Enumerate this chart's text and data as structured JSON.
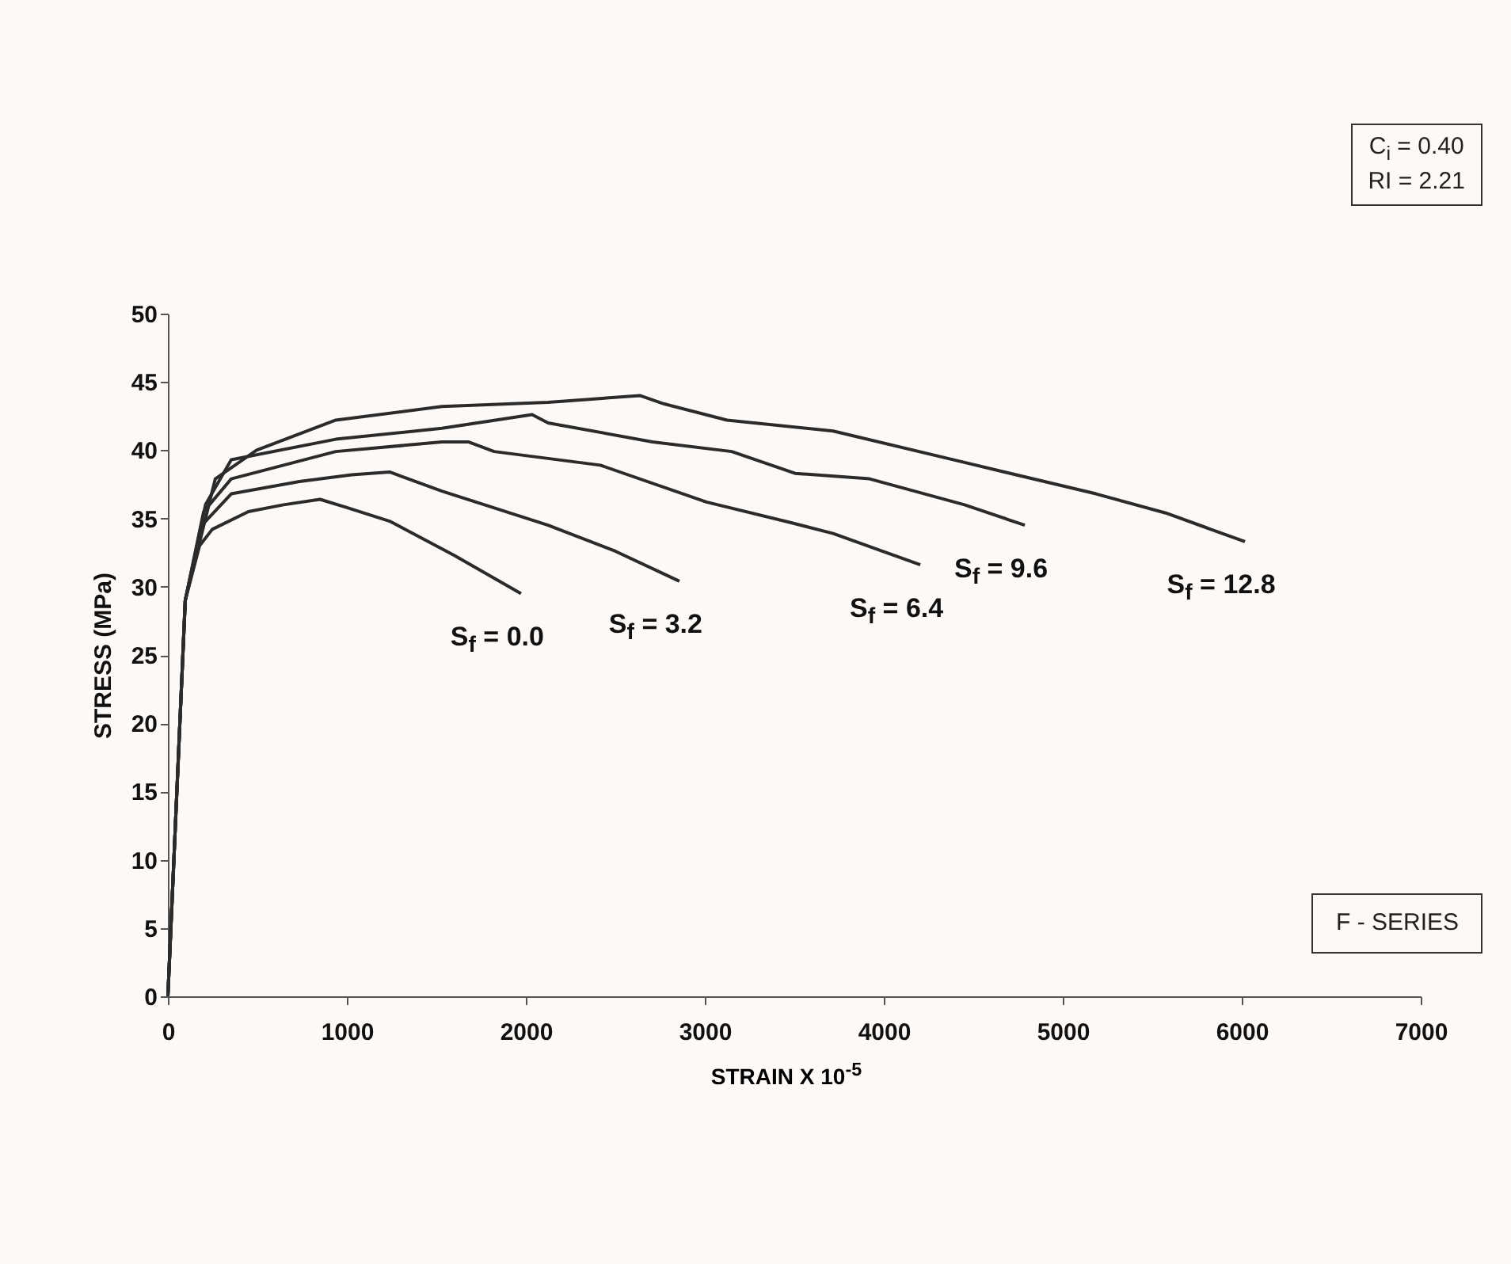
{
  "chart_data": {
    "type": "line",
    "xlabel": "STRAIN X 10$^{-5}$",
    "ylabel": "STRESS (MPa)",
    "xlim": [
      0,
      7000
    ],
    "ylim": [
      0,
      50
    ],
    "xticks": [
      0,
      1000,
      2000,
      3000,
      4000,
      5000,
      6000,
      7000
    ],
    "yticks": [
      0,
      5,
      10,
      15,
      20,
      25,
      30,
      35,
      40,
      45,
      50
    ],
    "grid": false,
    "legend": false,
    "series": [
      {
        "name": "S$_{f}$ = 0.0",
        "color": "#2b2b2b",
        "x": [
          0,
          97,
          177,
          248,
          450,
          646,
          850,
          1000,
          1239,
          1600,
          1973
        ],
        "values": [
          0,
          29,
          33,
          34.2,
          35.5,
          36,
          36.4,
          35.8,
          34.8,
          32.3,
          29.5
        ]
      },
      {
        "name": "S$_{f}$ = 3.2",
        "color": "#2b2b2b",
        "x": [
          0,
          97,
          190,
          354,
          735,
          1027,
          1239,
          1531,
          2124,
          2500,
          2858
        ],
        "values": [
          0,
          29,
          34.5,
          36.8,
          37.7,
          38.2,
          38.4,
          37,
          34.5,
          32.6,
          30.4
        ]
      },
      {
        "name": "S$_{f}$ = 6.4",
        "color": "#2b2b2b",
        "x": [
          0,
          97,
          200,
          354,
          938,
          1531,
          1681,
          1823,
          2416,
          3009,
          3478,
          3717,
          4204
        ],
        "values": [
          0,
          29,
          35.5,
          37.9,
          39.9,
          40.6,
          40.6,
          39.9,
          38.9,
          36.2,
          34.7,
          33.9,
          31.6
        ]
      },
      {
        "name": "S$_{f}$ = 9.6",
        "color": "#2b2b2b",
        "x": [
          0,
          97,
          210,
          354,
          938,
          1531,
          2035,
          2124,
          2708,
          3150,
          3504,
          3920,
          4451,
          4788
        ],
        "values": [
          0,
          29,
          36,
          39.3,
          40.8,
          41.6,
          42.6,
          42,
          40.6,
          39.9,
          38.3,
          37.9,
          36,
          34.5
        ]
      },
      {
        "name": "S$_{f}$ = 12.8",
        "color": "#2b2b2b",
        "x": [
          0,
          97,
          265,
          496,
          938,
          1531,
          2124,
          2637,
          2770,
          3124,
          3717,
          4451,
          5186,
          5575,
          6018
        ],
        "values": [
          0,
          29,
          37.9,
          40,
          42.2,
          43.2,
          43.5,
          44,
          43.4,
          42.2,
          41.4,
          39.1,
          36.8,
          35.4,
          33.3
        ]
      }
    ],
    "annotations": [
      "C$_{i}$ = 0.40",
      "RI = 2.21",
      "F - SERIES"
    ]
  }
}
